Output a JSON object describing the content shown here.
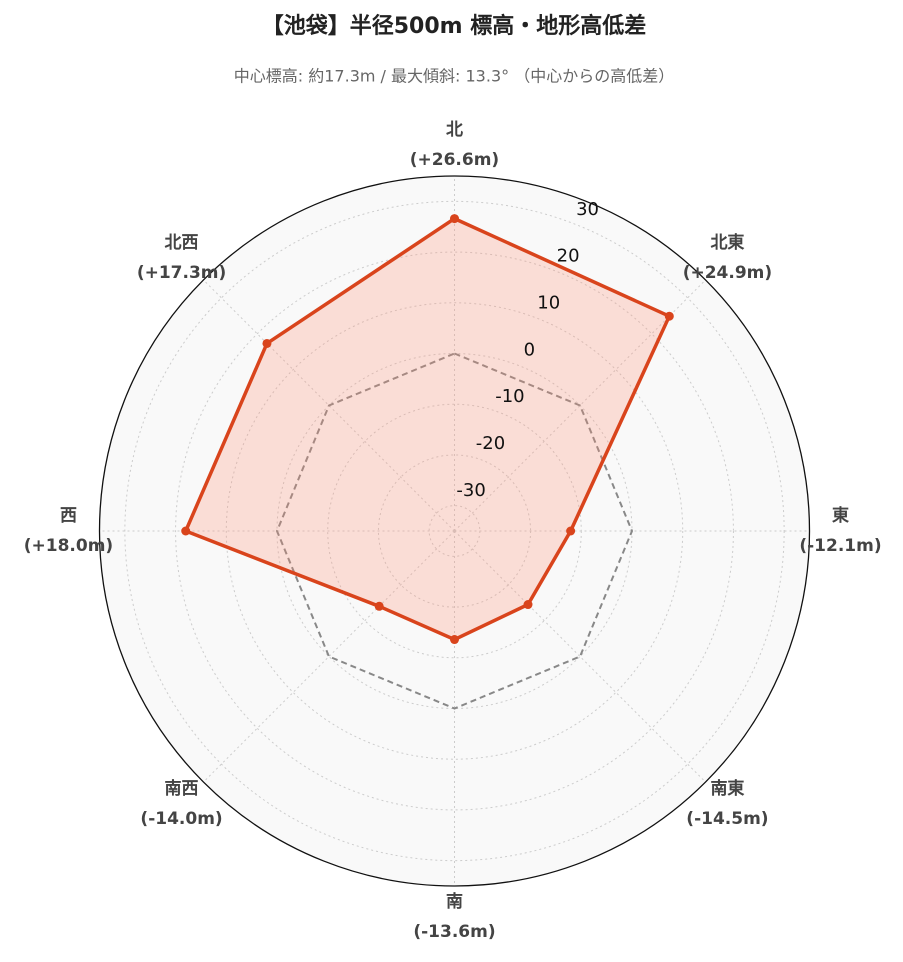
{
  "chart_data": {
    "type": "radar",
    "title": "【池袋】半径500m 標高・地形高低差",
    "subtitle": "中心標高: 約17.3m / 最大傾斜: 13.3° （中心からの高低差）",
    "categories": [
      "北",
      "北東",
      "東",
      "南東",
      "南",
      "南西",
      "西",
      "北西"
    ],
    "values": [
      26.6,
      24.9,
      -12.1,
      -14.5,
      -13.6,
      -14.0,
      18.0,
      17.3
    ],
    "value_labels": [
      "(+26.6m)",
      "(+24.9m)",
      "(-12.1m)",
      "(-14.5m)",
      "(-13.6m)",
      "(-14.0m)",
      "(+18.0m)",
      "(+17.3m)"
    ],
    "color": "#d9441c",
    "ylim": [
      -35,
      35
    ],
    "yticks": [
      -30,
      -20,
      -10,
      0,
      10,
      20,
      30
    ],
    "grid": true
  }
}
